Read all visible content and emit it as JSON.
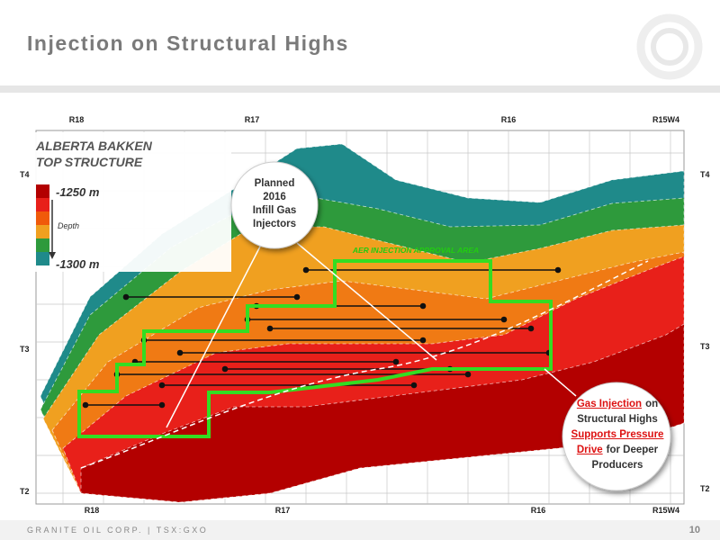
{
  "header": {
    "title": "Injection on Structural Highs"
  },
  "map": {
    "top_labels": [
      "R18",
      "R17",
      "R16",
      "R15W4"
    ],
    "bottom_labels": [
      "R18",
      "R17",
      "R16",
      "R15W4"
    ],
    "left_labels": [
      "T4",
      "T3",
      "T2"
    ],
    "right_labels": [
      "T4",
      "T3",
      "T2"
    ],
    "legend": {
      "title": "ALBERTA BAKKEN TOP STRUCTURE",
      "top": "-1250 m",
      "middle": "Depth",
      "bottom": "-1300 m"
    },
    "callout_injectors": {
      "lines": [
        "Planned",
        "2016",
        "Infill Gas",
        "Injectors"
      ]
    },
    "approval_area": "AER INJECTION APPROVAL AREA",
    "callout_pressure": {
      "lines": [
        [
          {
            "text": "Gas Injection",
            "emphasis": true
          },
          {
            "text": "on",
            "emphasis": false
          }
        ],
        [
          {
            "text": "Structural Highs",
            "emphasis": false
          }
        ],
        [
          {
            "text": "Supports Pressure",
            "emphasis": true
          }
        ],
        [
          {
            "text": "Drive",
            "emphasis": true
          },
          {
            "text": "for Deeper",
            "emphasis": false
          }
        ],
        [
          {
            "text": "Producers",
            "emphasis": false
          }
        ]
      ]
    }
  },
  "footer": {
    "company": "GRANITE OIL CORP. | TSX:GXO",
    "page": "10"
  }
}
